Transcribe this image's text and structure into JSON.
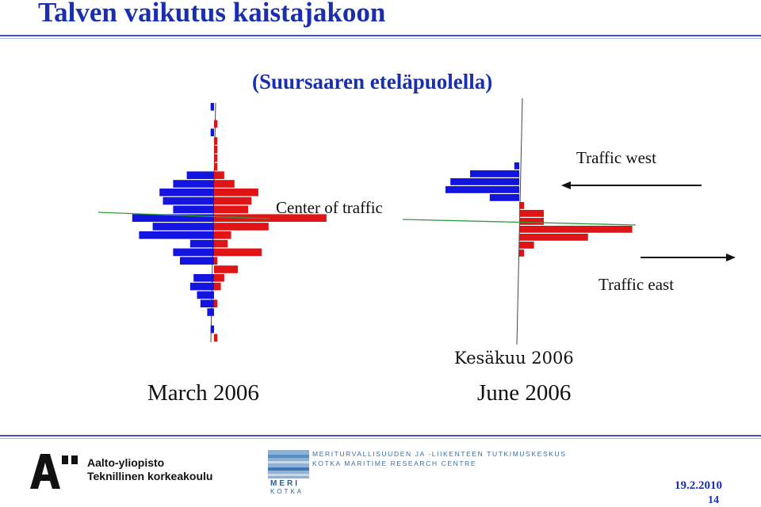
{
  "slide": {
    "title": "Talven vaikutus kaistajakoon",
    "subtitle": "(Suursaaren eteläpuolella)",
    "center_label": "Center of traffic",
    "traffic_west_label": "Traffic west",
    "traffic_east_label": "Traffic east",
    "kesakuu_label": "Kesäkuu 2006",
    "date": "19.2.2010",
    "page_number": "14"
  },
  "footer": {
    "aalto_line1": "Aalto-yliopisto",
    "aalto_line2": "Teknillinen korkeakoulu",
    "meri_line1": "MERITURVALLISUUDEN JA -LIIKENTEEN TUTKIMUSKESKUS",
    "meri_line2": "KOTKA MARITIME RESEARCH CENTRE",
    "meri_word1": "MERI",
    "meri_word2": "KOTKA"
  },
  "colors": {
    "title_blue": "#1a2fb0",
    "west_blue": "#1414e0",
    "east_red": "#e01414",
    "center_line_green": "#2e9a3a"
  },
  "chart_data": [
    {
      "type": "bar",
      "orientation": "horizontal-diverging",
      "title": "March 2006",
      "series": [
        {
          "name": "Traffic west",
          "values": [
            1,
            0,
            0,
            1,
            0,
            0,
            0,
            0,
            8,
            12,
            16,
            15,
            12,
            24,
            18,
            22,
            7,
            12,
            10,
            0,
            6,
            7,
            5,
            4,
            2,
            0,
            1,
            0
          ]
        },
        {
          "name": "Traffic east",
          "values": [
            0,
            0,
            1,
            0,
            1,
            1,
            1,
            1,
            3,
            6,
            13,
            11,
            10,
            33,
            16,
            5,
            4,
            14,
            1,
            7,
            3,
            2,
            0,
            1,
            0,
            0,
            0,
            1
          ]
        }
      ]
    },
    {
      "type": "bar",
      "orientation": "horizontal-diverging",
      "title": "June 2006",
      "series": [
        {
          "name": "Traffic west",
          "values": [
            1,
            10,
            14,
            15,
            6,
            0,
            0,
            0,
            0,
            0,
            0,
            0
          ]
        },
        {
          "name": "Traffic east",
          "values": [
            0,
            0,
            0,
            0,
            0,
            1,
            5,
            5,
            23,
            14,
            3,
            1
          ]
        }
      ]
    }
  ]
}
